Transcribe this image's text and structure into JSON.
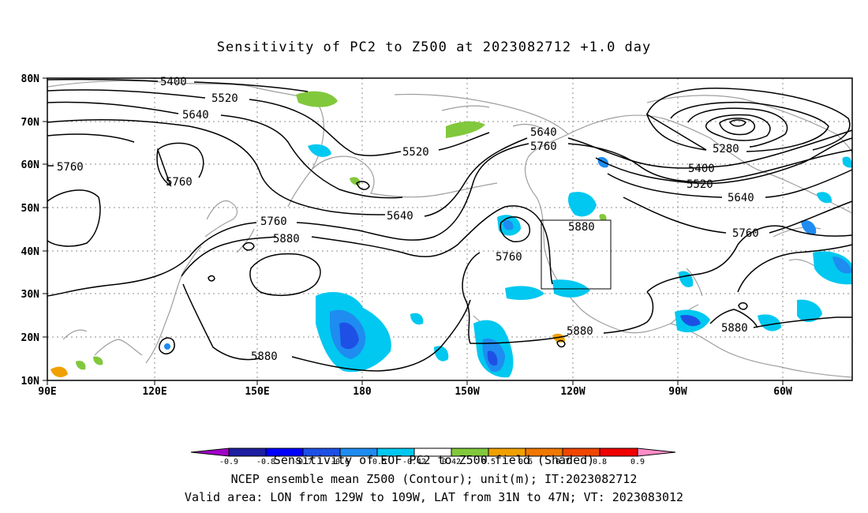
{
  "title": "Sensitivity of PC2 to Z500 at 2023082712 +1.0 day",
  "map": {
    "lat_labels": [
      "80N",
      "70N",
      "60N",
      "50N",
      "40N",
      "30N",
      "20N",
      "10N"
    ],
    "lon_labels": [
      "90E",
      "120E",
      "150E",
      "180",
      "150W",
      "120W",
      "90W",
      "60W"
    ],
    "contour_labels": [
      "5400",
      "5520",
      "5640",
      "5760",
      "5760",
      "5520",
      "5640",
      "5760",
      "5280",
      "5400",
      "5520",
      "5640",
      "5760",
      "5640",
      "5760",
      "5880",
      "5880",
      "5760",
      "5880",
      "5880",
      "5880",
      "5880"
    ],
    "contour_levels": [
      5280,
      5400,
      5520,
      5640,
      5760,
      5880
    ],
    "valid_box": {
      "lon_west": -129,
      "lon_east": -109,
      "lat_south": 31,
      "lat_north": 47
    }
  },
  "colorbar": {
    "labels": [
      "-0.9",
      "-0.8",
      "-0.7",
      "-0.6",
      "-0.5",
      "-0.42",
      "0.42",
      "0.5",
      "0.6",
      "0.7",
      "0.8",
      "0.9"
    ],
    "colors": [
      "#a000c8",
      "#1e1ea0",
      "#0000ff",
      "#1e50e6",
      "#1e8cf0",
      "#00c8f0",
      "#ffffff",
      "#82c83c",
      "#f0a000",
      "#f07800",
      "#f04600",
      "#f00000",
      "#ff8cc8"
    ]
  },
  "captions": {
    "line1": "Sensitivity of EOF PC2 to Z500 field (Shaded)",
    "line2": "NCEP ensemble mean Z500 (Contour); unit(m); IT:2023082712",
    "line3": "Valid area: LON from 129W to 109W, LAT from 31N to 47N; VT: 2023083012"
  }
}
